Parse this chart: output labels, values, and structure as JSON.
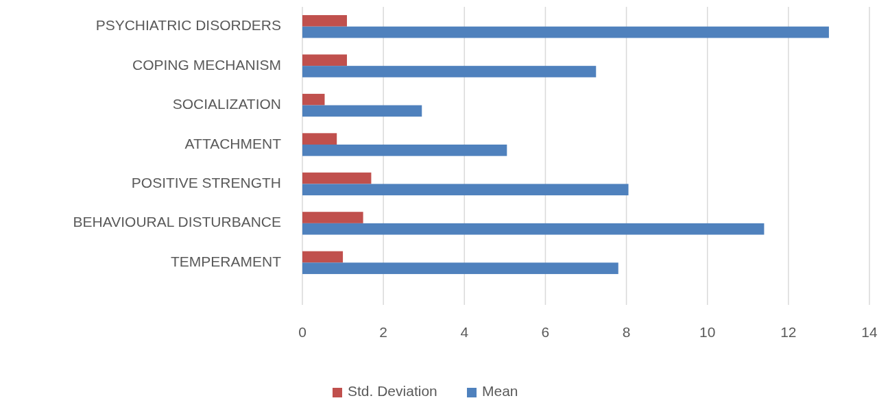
{
  "chart_data": {
    "type": "bar",
    "orientation": "horizontal",
    "categories": [
      "PSYCHIATRIC DISORDERS",
      "COPING MECHANISM",
      "SOCIALIZATION",
      "ATTACHMENT",
      "POSITIVE STRENGTH",
      "BEHAVIOURAL DISTURBANCE",
      "TEMPERAMENT"
    ],
    "series": [
      {
        "name": "Std. Deviation",
        "color": "#c0504d",
        "values": [
          1.1,
          1.1,
          0.55,
          0.85,
          1.7,
          1.5,
          1.0
        ]
      },
      {
        "name": "Mean",
        "color": "#4f81bd",
        "values": [
          13.0,
          7.25,
          2.95,
          5.05,
          8.05,
          11.4,
          7.8
        ]
      }
    ],
    "xlim": [
      0,
      14
    ],
    "xticks": [
      0,
      2,
      4,
      6,
      8,
      10,
      12,
      14
    ],
    "grid": "x",
    "legend": "bottom"
  }
}
